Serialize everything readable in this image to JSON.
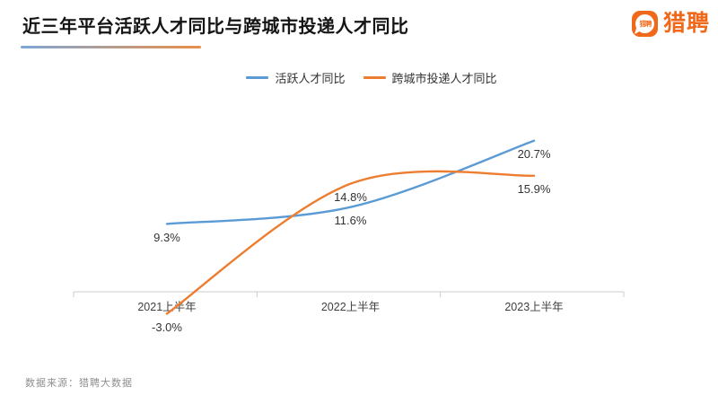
{
  "header": {
    "title": "近三年平台活跃人才同比与跨城市投递人才同比"
  },
  "logo": {
    "icon": "liepin-speech-bubble-icon",
    "icon_label": "猎聘",
    "brand": "猎聘",
    "brand_color": "#f0681a"
  },
  "legend": [
    {
      "label": "活跃人才同比",
      "color": "#5b9bd5"
    },
    {
      "label": "跨城市投递人才同比",
      "color": "#ed7d31"
    }
  ],
  "chart_data": {
    "type": "line",
    "smooth": true,
    "title": "近三年平台活跃人才同比与跨城市投递人才同比",
    "categories": [
      "2021上半年",
      "2022上半年",
      "2023上半年"
    ],
    "series": [
      {
        "name": "活跃人才同比",
        "color": "#5b9bd5",
        "values": [
          9.3,
          11.6,
          20.7
        ],
        "labels": [
          "9.3%",
          "11.6%",
          "20.7%"
        ]
      },
      {
        "name": "跨城市投递人才同比",
        "color": "#ed7d31",
        "values": [
          -3.0,
          14.8,
          15.9
        ],
        "labels": [
          "-3.0%",
          "14.8%",
          "15.9%"
        ]
      }
    ],
    "xlabel": "",
    "ylabel": "",
    "ylim": [
      -5,
      28
    ],
    "baseline_value": 0,
    "grid": false,
    "legend_position": "top",
    "axis_color": "#cccccc",
    "tick_label_color": "#404040",
    "data_label_color": "#333333"
  },
  "footer": {
    "source": "数据来源：猎聘大数据"
  }
}
